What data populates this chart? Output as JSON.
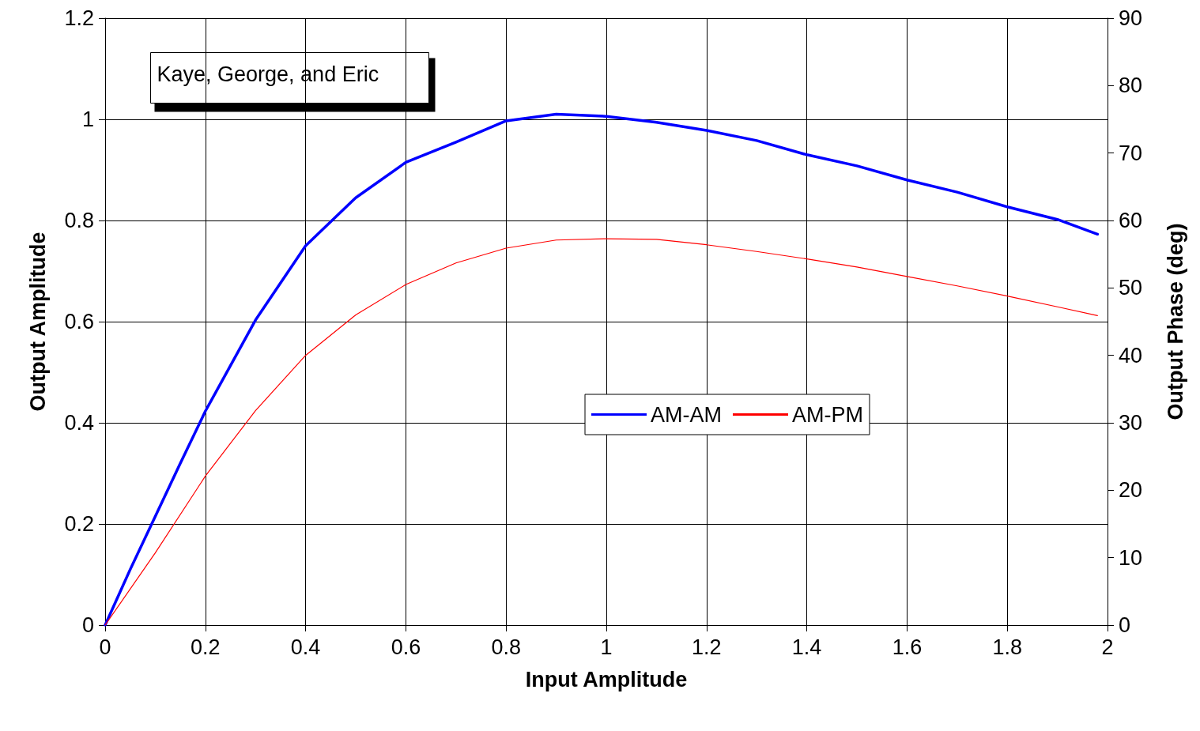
{
  "chart_data": {
    "type": "line",
    "xlabel": "Input Amplitude",
    "ylabel": "Output Amplitude",
    "y2label": "Output Phase (deg)",
    "annotations": [
      "Kaye, George, and Eric"
    ],
    "xlim": [
      0,
      2
    ],
    "xticks": [
      0,
      0.2,
      0.4,
      0.6,
      0.8,
      1,
      1.2,
      1.4,
      1.6,
      1.8,
      2
    ],
    "ylim": [
      0,
      1.2
    ],
    "yticks": [
      0,
      0.2,
      0.4,
      0.6,
      0.8,
      1,
      1.2
    ],
    "y2lim": [
      0,
      90
    ],
    "y2ticks": [
      0,
      10,
      20,
      30,
      40,
      50,
      60,
      70,
      80,
      90
    ],
    "grid": true,
    "legend": "right",
    "marker": "none",
    "line_style": "solid",
    "series": [
      {
        "name": "AM-AM",
        "color": "#0000ff",
        "x": [
          0,
          0.05,
          0.1,
          0.15,
          0.2,
          0.3,
          0.4,
          0.5,
          0.6,
          0.7,
          0.8,
          0.9,
          1,
          1.1,
          1.2,
          1.3,
          1.4,
          1.5,
          1.6,
          1.7,
          1.8,
          1.9,
          1.98
        ],
        "values": [
          0,
          0.11,
          0.215,
          0.32,
          0.423,
          0.603,
          0.75,
          0.845,
          0.915,
          0.955,
          0.997,
          1.01,
          1.006,
          0.994,
          0.978,
          0.958,
          0.93,
          0.908,
          0.88,
          0.856,
          0.827,
          0.802,
          0.773
        ]
      },
      {
        "name": "AM-PM",
        "color": "#ff0000",
        "axis": "y2",
        "x": [
          0,
          0.1,
          0.2,
          0.3,
          0.4,
          0.5,
          0.6,
          0.7,
          0.8,
          0.9,
          1,
          1.1,
          1.2,
          1.3,
          1.4,
          1.5,
          1.6,
          1.7,
          1.8,
          1.9,
          1.98
        ],
        "values": [
          0,
          10.7,
          22.1,
          31.8,
          40,
          46,
          50.5,
          53.7,
          55.9,
          57.1,
          57.3,
          57.2,
          56.4,
          55.4,
          54.3,
          53.1,
          51.7,
          50.3,
          48.8,
          47.2,
          45.9
        ]
      }
    ]
  }
}
